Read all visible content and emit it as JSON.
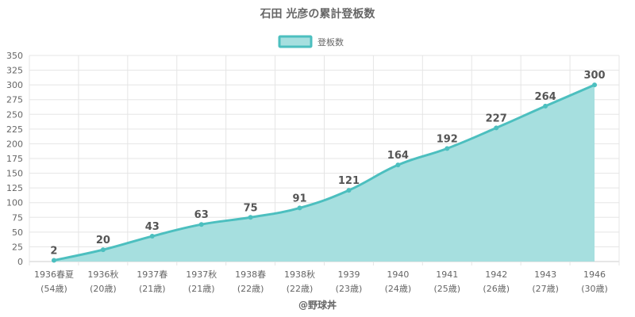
{
  "chart_data": {
    "type": "area",
    "title": "石田 光彦の累計登板数",
    "categories": [
      "1936春夏",
      "1936秋",
      "1937春",
      "1937秋",
      "1938春",
      "1938秋",
      "1939",
      "1940",
      "1941",
      "1942",
      "1943",
      "1946"
    ],
    "sublabels": [
      "(54歳)",
      "(20歳)",
      "(21歳)",
      "(21歳)",
      "(22歳)",
      "(22歳)",
      "(23歳)",
      "(24歳)",
      "(25歳)",
      "(26歳)",
      "(27歳)",
      "(30歳)"
    ],
    "series": [
      {
        "name": "登板数",
        "values": [
          2,
          20,
          43,
          63,
          75,
          91,
          121,
          164,
          192,
          227,
          264,
          300
        ]
      }
    ],
    "ylim": [
      0,
      350
    ],
    "yticks": [
      0,
      25,
      50,
      75,
      100,
      125,
      150,
      175,
      200,
      225,
      250,
      275,
      300,
      325,
      350
    ],
    "grid": true,
    "legend_position": "top-center",
    "colors": {
      "line": "#4cbfbf",
      "fill": "#a6dfdf"
    }
  },
  "footer": "@野球丼"
}
